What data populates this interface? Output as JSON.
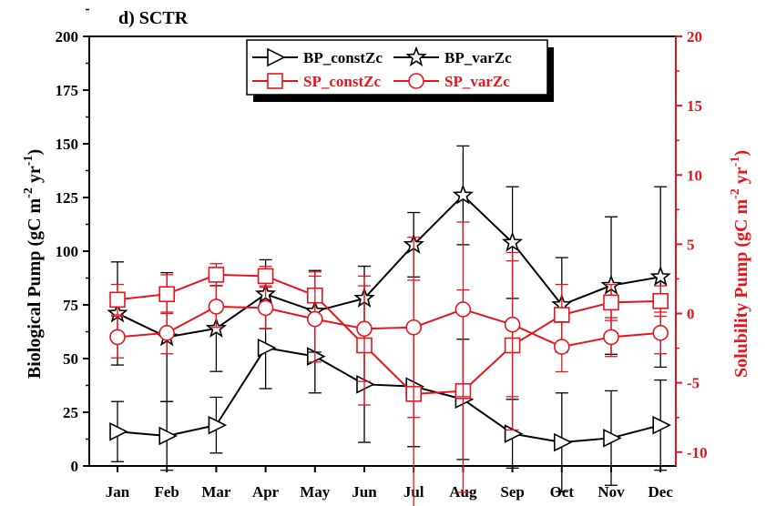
{
  "chart_data": {
    "type": "line",
    "title": "d) SCTR",
    "categories": [
      "Jan",
      "Feb",
      "Mar",
      "Apr",
      "May",
      "Jun",
      "Jul",
      "Aug",
      "Sep",
      "Oct",
      "Nov",
      "Dec"
    ],
    "ylabel": "Biological Pump (gC m-2 yr-1)",
    "ylabel_parts": {
      "main": "Biological Pump (gC m",
      "exp1": "-2",
      "mid": " yr",
      "exp2": "-1",
      "end": ")"
    },
    "ylim": [
      0,
      200
    ],
    "yticks": [
      0,
      25,
      50,
      75,
      100,
      125,
      150,
      175,
      200
    ],
    "y2label": "Solubility Pump (gC m-2 yr-1)",
    "y2label_parts": {
      "main": "Solubility Pump (gC m",
      "exp1": "-2",
      "mid": " yr",
      "exp2": "-1",
      "end": ")"
    },
    "y2lim": [
      -11,
      20
    ],
    "y2ticks": [
      -10,
      -5,
      0,
      5,
      10,
      15,
      20
    ],
    "grid": false,
    "legend_position": "top-center",
    "series": [
      {
        "name": "BP_constZc",
        "axis": "left",
        "color": "#000000",
        "marker": "triangle-right",
        "values": [
          16,
          14,
          19,
          55,
          51,
          38,
          37,
          31,
          15,
          11,
          13,
          19
        ],
        "errors": [
          14,
          16,
          13,
          19,
          17,
          27,
          28,
          28,
          16,
          23,
          22,
          21
        ]
      },
      {
        "name": "BP_varZc",
        "axis": "left",
        "color": "#000000",
        "marker": "star",
        "values": [
          71,
          60,
          64,
          80,
          72,
          78,
          103,
          126,
          104,
          75,
          84,
          88
        ],
        "errors": [
          24,
          30,
          20,
          16,
          19,
          15,
          15,
          23,
          26,
          22,
          32,
          42
        ]
      },
      {
        "name": "SP_constZc",
        "axis": "right",
        "color": "#e8141c",
        "marker": "square",
        "values": [
          1.0,
          1.4,
          2.8,
          2.7,
          1.3,
          -2.3,
          -5.8,
          -5.6,
          -2.3,
          -0.1,
          0.8,
          0.9
        ],
        "errors": [
          1.1,
          1.4,
          0.8,
          0.7,
          1.7,
          4.3,
          8.2,
          7.3,
          6.1,
          2.2,
          1.3,
          1.1
        ]
      },
      {
        "name": "SP_varZc",
        "axis": "right",
        "color": "#e8141c",
        "marker": "circle",
        "values": [
          -1.7,
          -1.4,
          0.5,
          0.4,
          -0.4,
          -1.1,
          -1.0,
          0.3,
          -0.8,
          -2.4,
          -1.7,
          -1.4
        ],
        "errors": [
          1.5,
          1.5,
          1.5,
          1.5,
          3.1,
          3.8,
          6.5,
          6.3,
          5.2,
          1.8,
          1.4,
          1.5
        ]
      }
    ]
  }
}
